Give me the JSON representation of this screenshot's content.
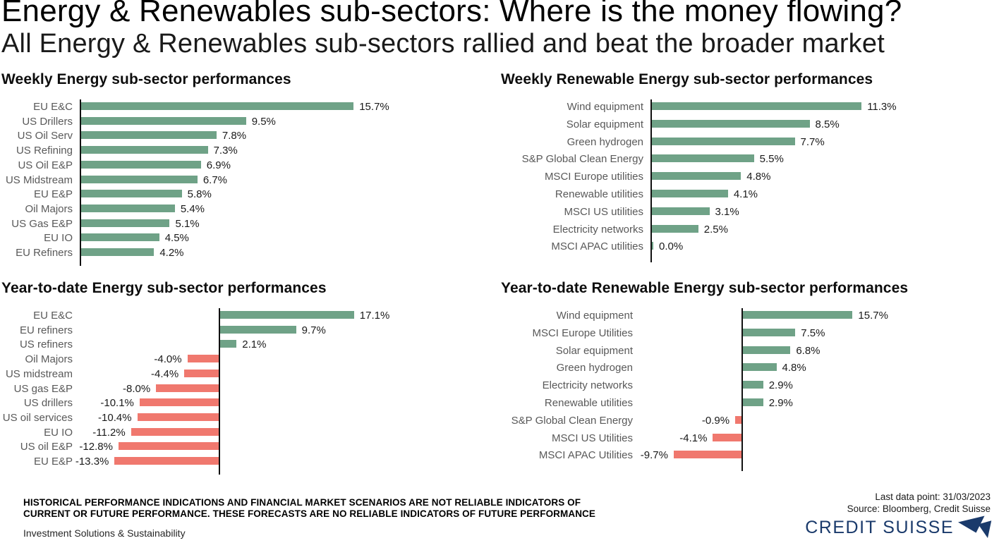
{
  "header": {
    "title": "Energy & Renewables sub-sectors: Where is the money flowing?",
    "subtitle": "All Energy & Renewables sub-sectors rallied and beat the broader market"
  },
  "colors": {
    "positive": "#6FA287",
    "negative": "#F0786E",
    "category_label": "#595959",
    "value_label": "#1a1a1a",
    "brand_navy": "#1A3A6B"
  },
  "chart_data": [
    {
      "type": "bar",
      "orientation": "horizontal",
      "title": "Weekly Energy sub-sector performances",
      "unit": "%",
      "xlim": [
        0,
        16
      ],
      "grid": false,
      "legend": false,
      "categories": [
        "EU E&C",
        "US Drillers",
        "US Oil Serv",
        "US Refining",
        "US Oil E&P",
        "US Midstream",
        "EU E&P",
        "Oil Majors",
        "US Gas E&P",
        "EU IO",
        "EU Refiners"
      ],
      "values": [
        15.7,
        9.5,
        7.8,
        7.3,
        6.9,
        6.7,
        5.8,
        5.4,
        5.1,
        4.5,
        4.2
      ]
    },
    {
      "type": "bar",
      "orientation": "horizontal",
      "title": "Weekly Renewable Energy sub-sector performances",
      "unit": "%",
      "xlim": [
        0,
        12
      ],
      "grid": false,
      "legend": false,
      "categories": [
        "Wind equipment",
        "Solar equipment",
        "Green hydrogen",
        "S&P Global Clean Energy",
        "MSCI Europe utilities",
        "Renewable utilities",
        "MSCI US utilities",
        "Electricity networks",
        "MSCI APAC utilities"
      ],
      "values": [
        11.3,
        8.5,
        7.7,
        5.5,
        4.8,
        4.1,
        3.1,
        2.5,
        0.0
      ]
    },
    {
      "type": "bar",
      "orientation": "horizontal",
      "title": "Year-to-date Energy sub-sector performances",
      "unit": "%",
      "xlim": [
        -15,
        18
      ],
      "grid": false,
      "legend": false,
      "categories": [
        "EU E&C",
        "EU refiners",
        "US refiners",
        "Oil Majors",
        "US midstream",
        "US gas E&P",
        "US drillers",
        "US oil services",
        "EU IO",
        "US oil E&P",
        "EU E&P"
      ],
      "values": [
        17.1,
        9.7,
        2.1,
        -4.0,
        -4.4,
        -8.0,
        -10.1,
        -10.4,
        -11.2,
        -12.8,
        -13.3
      ]
    },
    {
      "type": "bar",
      "orientation": "horizontal",
      "title": "Year-to-date Renewable Energy sub-sector performances",
      "unit": "%",
      "xlim": [
        -10,
        16
      ],
      "grid": false,
      "legend": false,
      "categories": [
        "Wind equipment",
        "MSCI Europe Utilities",
        "Solar equipment",
        "Green hydrogen",
        "Electricity networks",
        "Renewable utilities",
        "S&P Global Clean Energy",
        "MSCI US Utilities",
        "MSCI APAC Utilities"
      ],
      "values": [
        15.7,
        7.5,
        6.8,
        4.8,
        2.9,
        2.9,
        -0.9,
        -4.1,
        -9.7
      ]
    }
  ],
  "footer": {
    "disclaimer_lines": [
      "HISTORICAL PERFORMANCE INDICATIONS AND FINANCIAL MARKET SCENARIOS ARE NOT RELIABLE INDICATORS OF",
      "CURRENT OR FUTURE PERFORMANCE. THESE FORECASTS ARE NO RELIABLE INDICATORS OF FUTURE PERFORMANCE"
    ],
    "division": "Investment Solutions & Sustainability",
    "last_data_point": "Last data point: 31/03/2023",
    "source": "Source: Bloomberg, Credit Suisse",
    "brand_name": "CREDIT SUISSE"
  }
}
